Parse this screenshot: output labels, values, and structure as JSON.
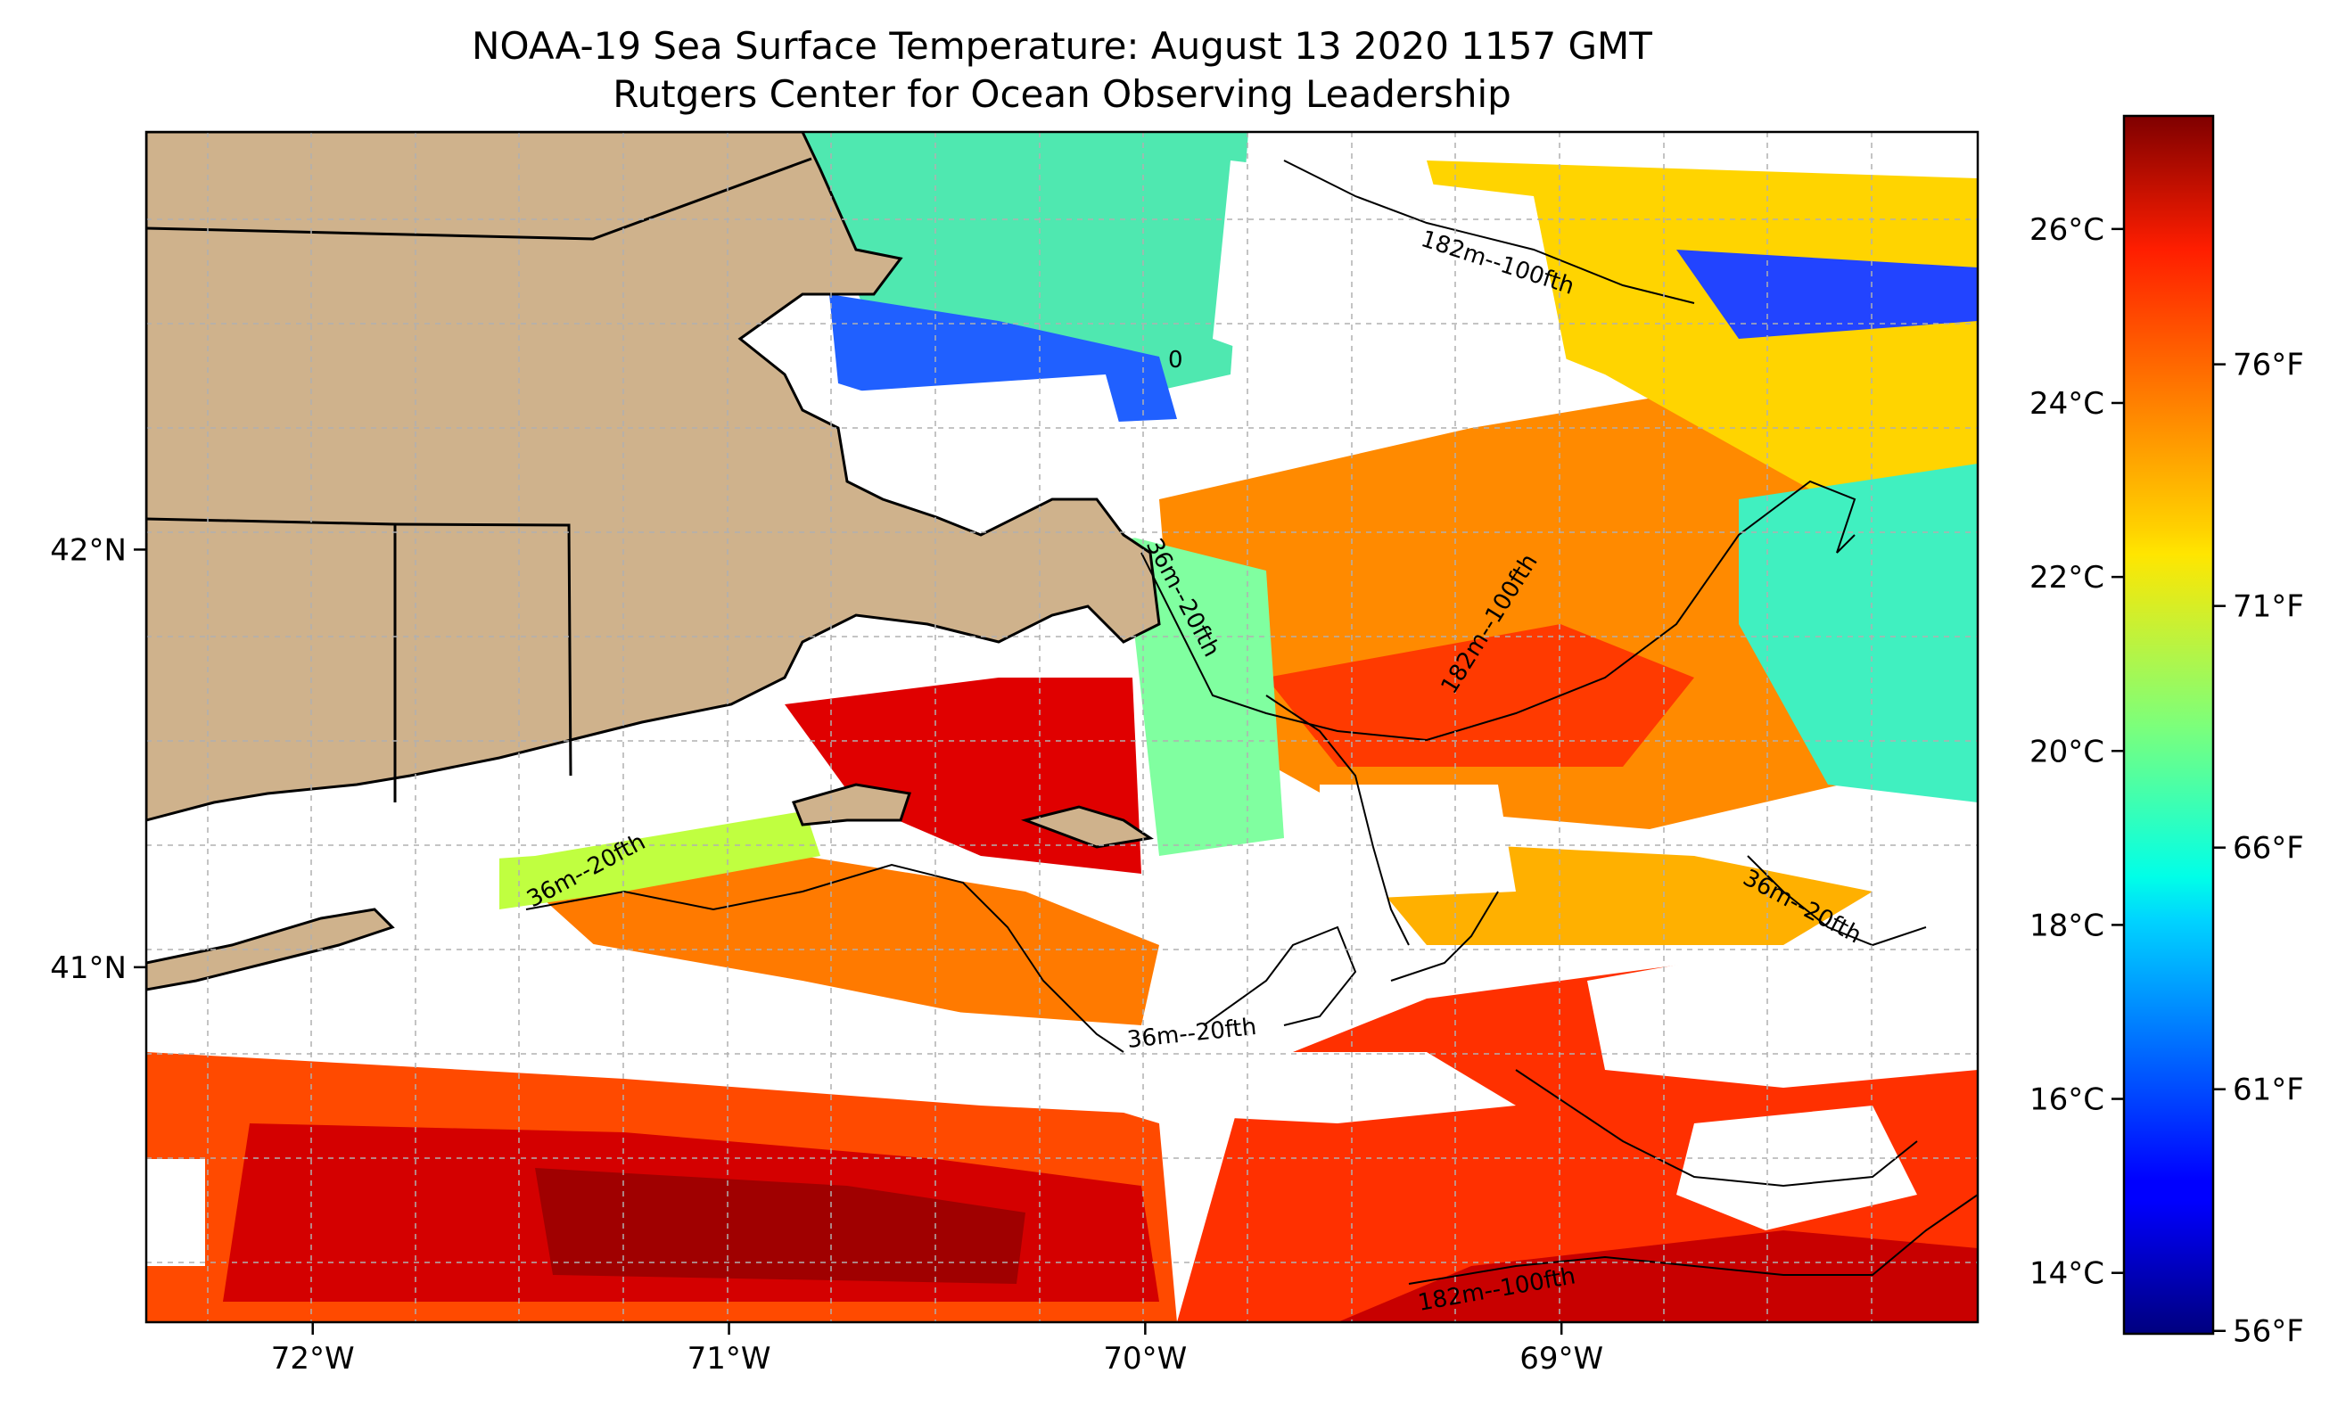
{
  "map": {
    "title_line1": "NOAA-19 Sea Surface Temperature: August 13 2020 1157 GMT",
    "title_line2": "Rutgers Center for Ocean Observing Leadership",
    "extent": {
      "lon_min": -72.4,
      "lon_max": -68.0,
      "lat_min": 40.15,
      "lat_max": 43.0
    },
    "lon_ticks": [
      {
        "value": -72,
        "label": "72°W"
      },
      {
        "value": -71,
        "label": "71°W"
      },
      {
        "value": -70,
        "label": "70°W"
      },
      {
        "value": -69,
        "label": "69°W"
      }
    ],
    "lat_ticks": [
      {
        "value": 42,
        "label": "42°N"
      },
      {
        "value": 41,
        "label": "41°N"
      }
    ],
    "gridlines": true,
    "land_color": "#cfb28c",
    "no_data_color": "#ffffff",
    "contour_labels": [
      {
        "text": "182m--100fth"
      },
      {
        "text": "182m--100fth"
      },
      {
        "text": "182m--100fth"
      },
      {
        "text": "36m--20fth"
      },
      {
        "text": "36m--20fth"
      },
      {
        "text": "36m--20fth"
      },
      {
        "text": "36m--20fth"
      },
      {
        "text": "0"
      }
    ]
  },
  "colorbar": {
    "colormap": "jet",
    "range_c": [
      13.3,
      27.3
    ],
    "celsius_ticks": [
      {
        "value": 26,
        "label": "26°C"
      },
      {
        "value": 24,
        "label": "24°C"
      },
      {
        "value": 22,
        "label": "22°C"
      },
      {
        "value": 20,
        "label": "20°C"
      },
      {
        "value": 18,
        "label": "18°C"
      },
      {
        "value": 16,
        "label": "16°C"
      },
      {
        "value": 14,
        "label": "14°C"
      }
    ],
    "fahrenheit_ticks": [
      {
        "value": 76,
        "label": "76°F"
      },
      {
        "value": 71,
        "label": "71°F"
      },
      {
        "value": 66,
        "label": "66°F"
      },
      {
        "value": 61,
        "label": "61°F"
      },
      {
        "value": 56,
        "label": "56°F"
      }
    ]
  }
}
